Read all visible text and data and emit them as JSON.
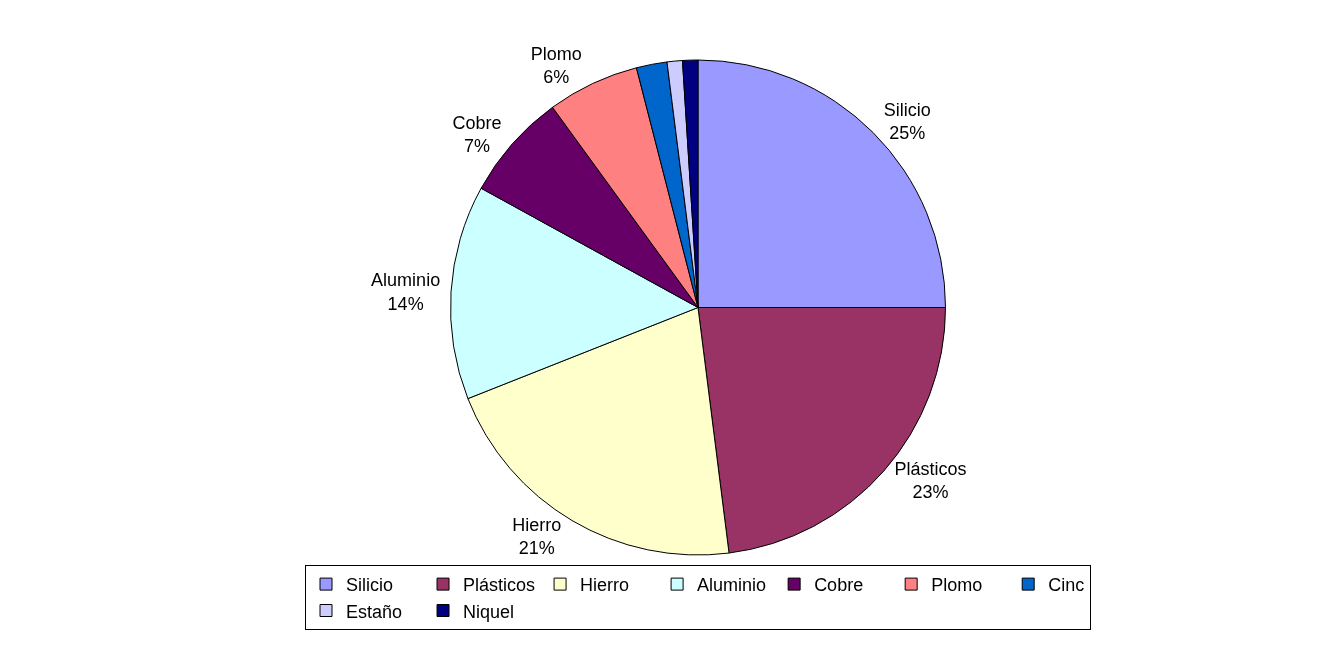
{
  "chart_data": {
    "type": "pie",
    "categories": [
      "Silicio",
      "Plásticos",
      "Hierro",
      "Aluminio",
      "Cobre",
      "Plomo",
      "Cinc",
      "Estaño",
      "Niquel"
    ],
    "values": [
      25,
      23,
      21,
      14,
      7,
      6,
      2,
      1,
      1
    ],
    "value_labels": [
      "25%",
      "23%",
      "21%",
      "14%",
      "7%",
      "6%",
      null,
      null,
      null
    ],
    "colors": [
      "#9999ff",
      "#993366",
      "#ffffcc",
      "#ccffff",
      "#660066",
      "#ff8080",
      "#0066cc",
      "#ccccff",
      "#000080"
    ],
    "legend": "bottom"
  }
}
